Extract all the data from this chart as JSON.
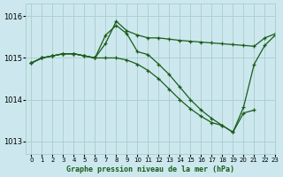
{
  "title": "Graphe pression niveau de la mer (hPa)",
  "bg_color": "#cce8ee",
  "grid_color": "#aacccc",
  "line_color": "#1a5c1a",
  "xlim": [
    -0.5,
    23
  ],
  "ylim": [
    1012.7,
    1016.3
  ],
  "yticks": [
    1013,
    1014,
    1015,
    1016
  ],
  "xticks": [
    0,
    1,
    2,
    3,
    4,
    5,
    6,
    7,
    8,
    9,
    10,
    11,
    12,
    13,
    14,
    15,
    16,
    17,
    18,
    19,
    20,
    21,
    22,
    23
  ],
  "series": [
    [
      1014.88,
      1015.0,
      1015.05,
      1015.1,
      1015.1,
      1015.05,
      1015.0,
      1015.35,
      1015.88,
      1015.65,
      1015.55,
      1015.48,
      1015.48,
      1015.45,
      1015.42,
      1015.4,
      1015.38,
      1015.36,
      1015.34,
      1015.32,
      1015.3,
      1015.28,
      1015.48,
      1015.58
    ],
    [
      1014.88,
      1015.0,
      1015.05,
      1015.1,
      1015.1,
      1015.05,
      1015.0,
      1015.55,
      1015.78,
      1015.58,
      1015.15,
      1015.08,
      1014.85,
      1014.6,
      1014.3,
      1014.0,
      1013.75,
      1013.55,
      1013.38,
      1013.22,
      1013.82,
      1014.85,
      1015.3,
      1015.55
    ],
    [
      1014.88,
      1015.0,
      1015.05,
      1015.1,
      1015.1,
      1015.05,
      1015.0,
      1015.0,
      1015.0,
      1014.95,
      1014.85,
      1014.7,
      1014.5,
      1014.25,
      1014.0,
      1013.78,
      1013.6,
      1013.45,
      1013.38,
      1013.22,
      1013.68,
      1013.75,
      null,
      null
    ]
  ]
}
